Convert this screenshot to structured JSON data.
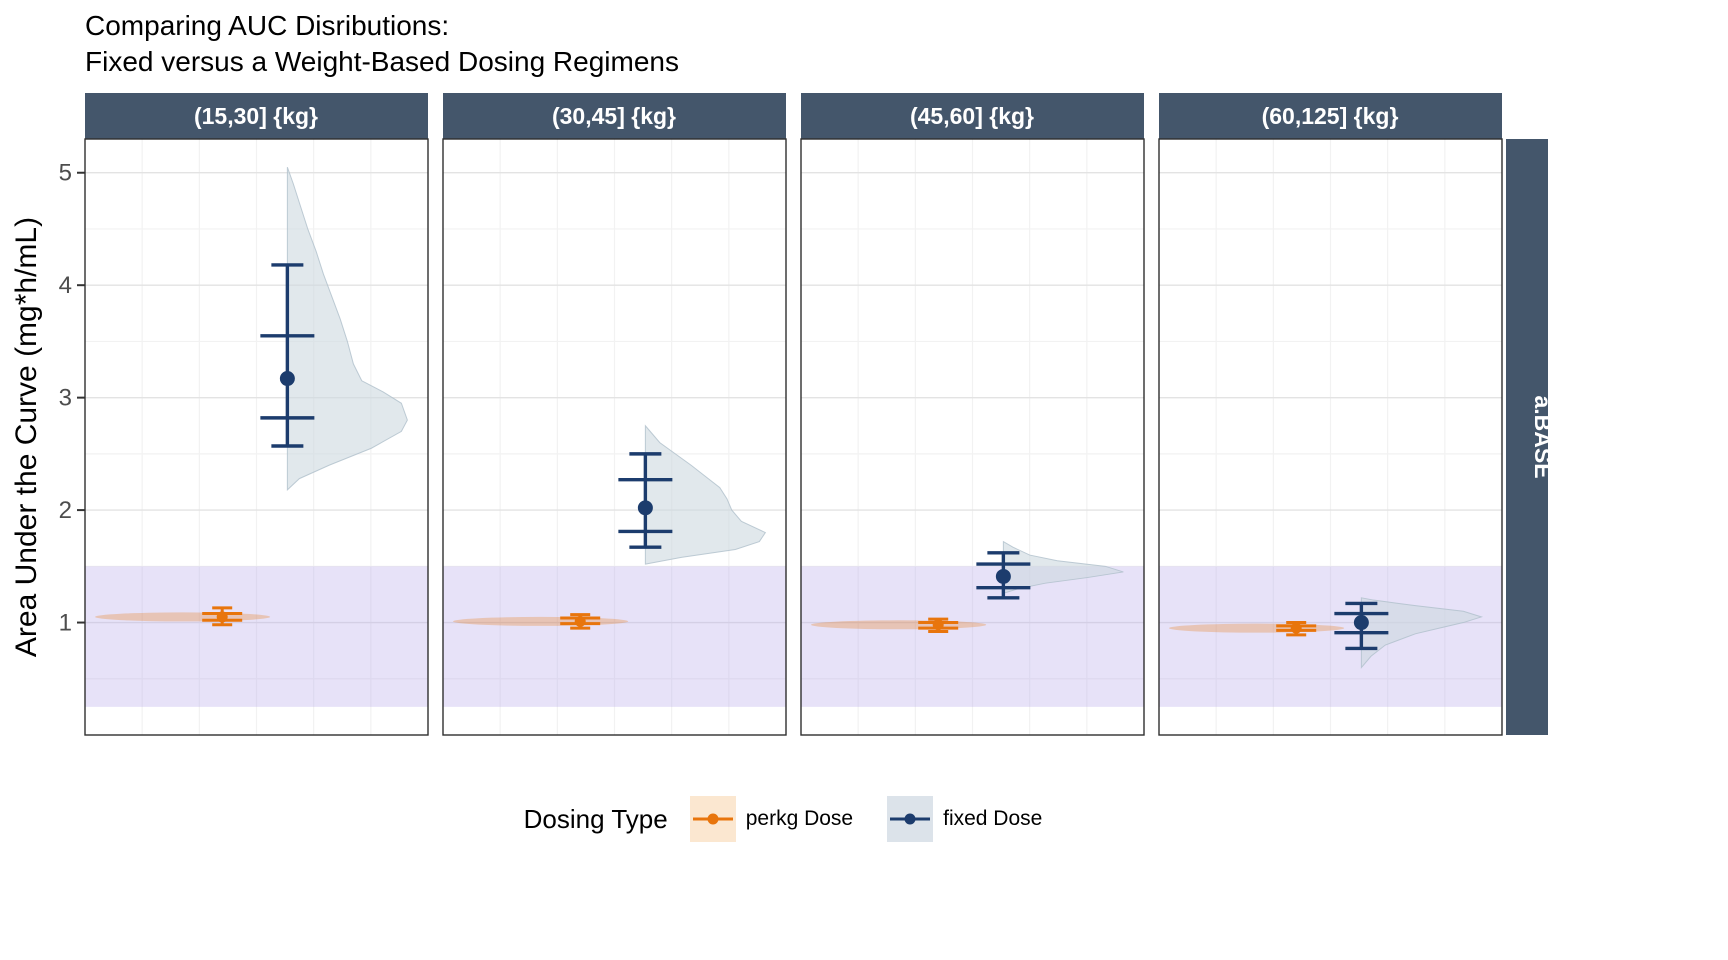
{
  "title": {
    "line1": "Comparing AUC Disributions:",
    "line2": "Fixed versus a Weight-Based Dosing Regimens"
  },
  "axes": {
    "y_title": "Area Under the Curve (mg*h/mL)",
    "y_ticks": [
      1,
      2,
      3,
      4,
      5
    ],
    "y_domain": [
      0,
      5.3
    ]
  },
  "right_strip": "a.BASE",
  "band": {
    "from": 0.25,
    "to": 1.5
  },
  "legend": {
    "title": "Dosing Type",
    "items": [
      {
        "label": "perkg Dose",
        "color": "#E8750C",
        "fill": "#FBE7D0"
      },
      {
        "label": "fixed Dose",
        "color": "#1C3C6D",
        "fill": "#DCE3EA"
      }
    ]
  },
  "colors": {
    "perkg": "#E8750C",
    "fixed": "#1C3C6D",
    "violin_fill": "#CDD8DF",
    "violin_stroke": "#AFBfCA",
    "strip_bg": "#44566B",
    "band": "#B3A6E8",
    "grid_major": "#E3E3E3",
    "grid_minor": "#F2F2F2",
    "panel_border": "#2F2F2F",
    "tick": "#333333"
  },
  "chart_data": {
    "type": "pointrange-halfviolin",
    "facet_variable": "weight band",
    "row_strip": "a.BASE",
    "facets": [
      {
        "label": "(15,30] {kg}",
        "perkg": {
          "mean": 1.05,
          "lo": 0.98,
          "hi": 1.13,
          "q1": 1.02,
          "q3": 1.08
        },
        "fixed": {
          "mean": 3.17,
          "lo": 2.57,
          "hi": 4.18,
          "q1": 2.82,
          "q3": 3.55
        },
        "fixed_violin": [
          [
            2.18,
            0
          ],
          [
            2.28,
            0.1
          ],
          [
            2.4,
            0.35
          ],
          [
            2.55,
            0.7
          ],
          [
            2.7,
            0.95
          ],
          [
            2.8,
            1.0
          ],
          [
            2.95,
            0.95
          ],
          [
            3.05,
            0.8
          ],
          [
            3.15,
            0.62
          ],
          [
            3.3,
            0.55
          ],
          [
            3.5,
            0.5
          ],
          [
            3.7,
            0.44
          ],
          [
            3.9,
            0.37
          ],
          [
            4.1,
            0.3
          ],
          [
            4.3,
            0.24
          ],
          [
            4.5,
            0.17
          ],
          [
            4.7,
            0.11
          ],
          [
            4.9,
            0.05
          ],
          [
            5.05,
            0
          ]
        ]
      },
      {
        "label": "(30,45] {kg}",
        "perkg": {
          "mean": 1.01,
          "lo": 0.95,
          "hi": 1.07,
          "q1": 0.99,
          "q3": 1.04
        },
        "fixed": {
          "mean": 2.02,
          "lo": 1.67,
          "hi": 2.5,
          "q1": 1.81,
          "q3": 2.27
        },
        "fixed_violin": [
          [
            1.52,
            0
          ],
          [
            1.58,
            0.3
          ],
          [
            1.65,
            0.75
          ],
          [
            1.72,
            0.95
          ],
          [
            1.8,
            1.0
          ],
          [
            1.9,
            0.8
          ],
          [
            2.0,
            0.72
          ],
          [
            2.1,
            0.68
          ],
          [
            2.2,
            0.62
          ],
          [
            2.3,
            0.5
          ],
          [
            2.4,
            0.38
          ],
          [
            2.5,
            0.25
          ],
          [
            2.6,
            0.12
          ],
          [
            2.7,
            0.04
          ],
          [
            2.75,
            0
          ]
        ]
      },
      {
        "label": "(45,60] {kg}",
        "perkg": {
          "mean": 0.98,
          "lo": 0.92,
          "hi": 1.03,
          "q1": 0.95,
          "q3": 1.0
        },
        "fixed": {
          "mean": 1.41,
          "lo": 1.22,
          "hi": 1.62,
          "q1": 1.31,
          "q3": 1.52
        },
        "fixed_violin": [
          [
            1.26,
            0
          ],
          [
            1.3,
            0.12
          ],
          [
            1.35,
            0.35
          ],
          [
            1.4,
            0.7
          ],
          [
            1.45,
            1.0
          ],
          [
            1.5,
            0.85
          ],
          [
            1.55,
            0.45
          ],
          [
            1.6,
            0.22
          ],
          [
            1.67,
            0.08
          ],
          [
            1.72,
            0
          ]
        ]
      },
      {
        "label": "(60,125] {kg}",
        "perkg": {
          "mean": 0.95,
          "lo": 0.89,
          "hi": 1.0,
          "q1": 0.93,
          "q3": 0.97
        },
        "fixed": {
          "mean": 1.0,
          "lo": 0.77,
          "hi": 1.17,
          "q1": 0.91,
          "q3": 1.08
        },
        "fixed_violin": [
          [
            0.6,
            0
          ],
          [
            0.7,
            0.08
          ],
          [
            0.8,
            0.2
          ],
          [
            0.9,
            0.45
          ],
          [
            0.95,
            0.65
          ],
          [
            1.0,
            0.85
          ],
          [
            1.05,
            1.0
          ],
          [
            1.1,
            0.85
          ],
          [
            1.15,
            0.45
          ],
          [
            1.2,
            0.1
          ],
          [
            1.22,
            0
          ]
        ]
      }
    ]
  }
}
